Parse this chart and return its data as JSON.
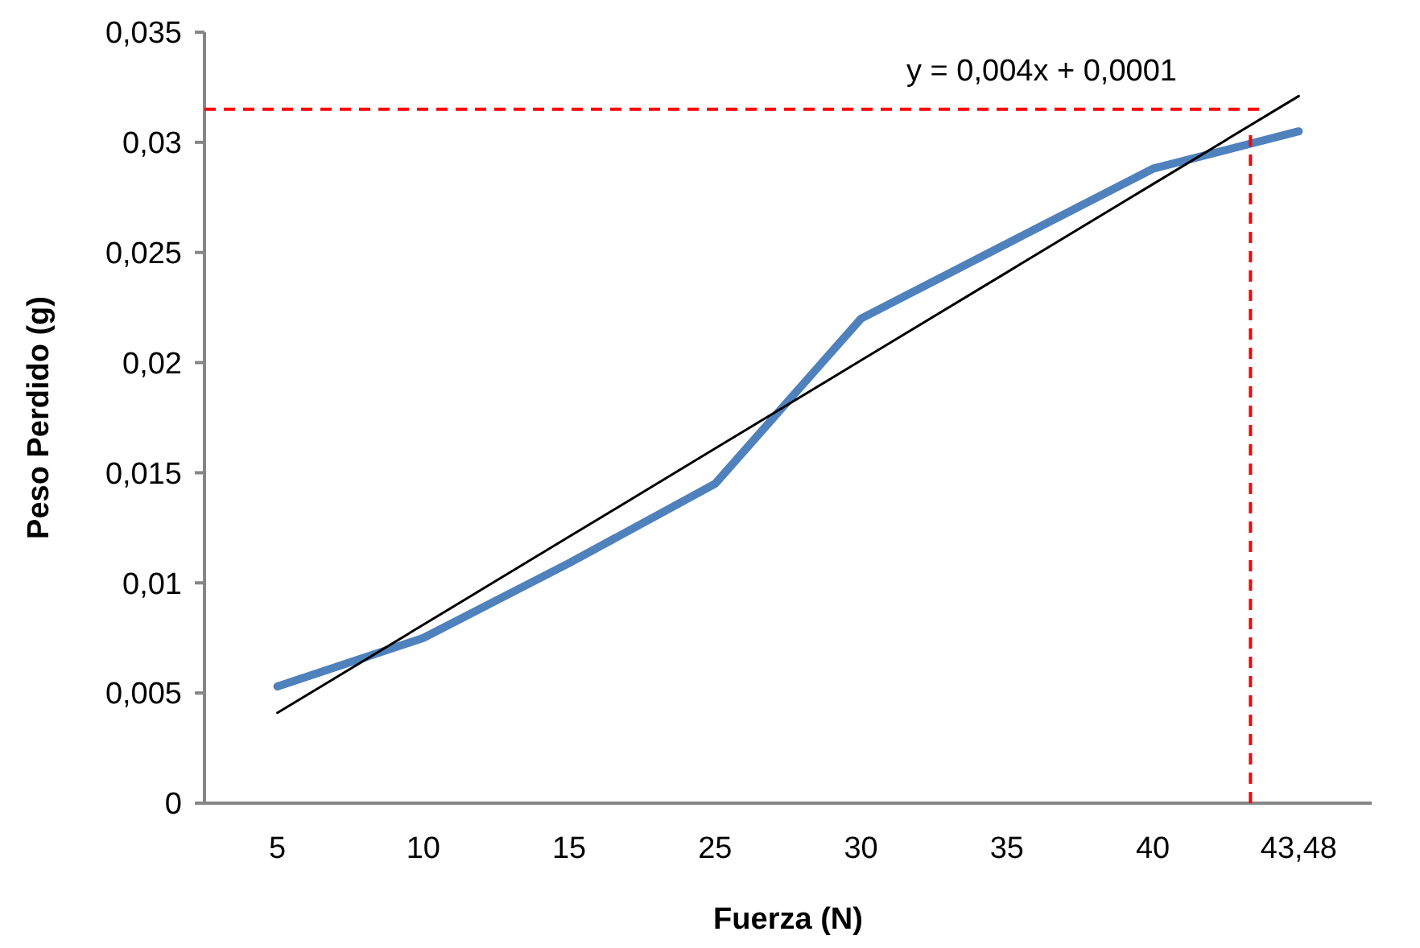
{
  "chart_data": {
    "type": "line",
    "xlabel": "Fuerza (N)",
    "ylabel": "Peso Perdido (g)",
    "categories": [
      "5",
      "10",
      "15",
      "25",
      "30",
      "35",
      "40",
      "43,48"
    ],
    "series": [
      {
        "color": "#4f81bd",
        "values": [
          0.0053,
          0.0075,
          0.0109,
          0.0145,
          0.022,
          0.0254,
          0.0288,
          0.0305
        ]
      },
      {
        "type": "line",
        "color": "#000000",
        "values": [
          0.0041,
          0.0081,
          0.0121,
          0.0161,
          0.0201,
          0.0241,
          0.0281,
          0.0321
        ]
      }
    ],
    "ylim": [
      0,
      0.035
    ],
    "yticks": [
      {
        "value": 0,
        "label": "0"
      },
      {
        "value": 0.005,
        "label": "0,005"
      },
      {
        "value": 0.01,
        "label": "0,01"
      },
      {
        "value": 0.015,
        "label": "0,015"
      },
      {
        "value": 0.02,
        "label": "0,02"
      },
      {
        "value": 0.025,
        "label": "0,025"
      },
      {
        "value": 0.03,
        "label": "0,03"
      },
      {
        "value": 0.035,
        "label": "0,035"
      }
    ],
    "ref_lines": [
      {
        "axis": "y",
        "value": 0.0315,
        "color": "#ff0000",
        "line_style": "dashed"
      },
      {
        "axis": "x",
        "value": "43,48",
        "color": "#ff0000",
        "line_style": "dashed"
      }
    ],
    "annotations": [
      "y = 0,004x + 0,0001"
    ],
    "grid": false,
    "marker": "none"
  }
}
